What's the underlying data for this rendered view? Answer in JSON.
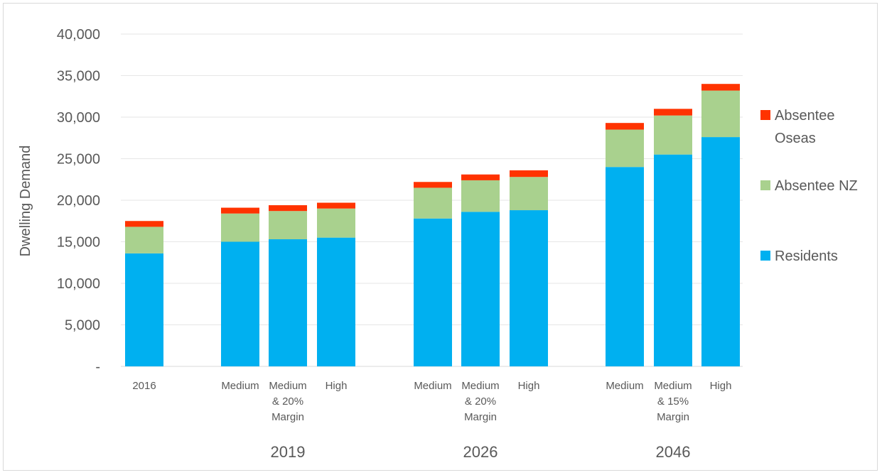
{
  "chart_data": {
    "type": "bar",
    "stacked": true,
    "ylabel": "Dwelling Demand",
    "ylim": [
      0,
      40000
    ],
    "yticks": [
      0,
      5000,
      10000,
      15000,
      20000,
      25000,
      30000,
      35000,
      40000
    ],
    "ytick_labels": [
      "-",
      "5,000",
      "10,000",
      "15,000",
      "20,000",
      "25,000",
      "30,000",
      "35,000",
      "40,000"
    ],
    "grid": true,
    "legend_position": "right",
    "groups": [
      "",
      "2019",
      "2026",
      "2046"
    ],
    "categories": [
      [
        "2016"
      ],
      [
        "Medium"
      ],
      [
        "Medium",
        "& 20%",
        "Margin"
      ],
      [
        "High"
      ],
      [
        "Medium"
      ],
      [
        "Medium",
        "& 20%",
        "Margin"
      ],
      [
        "High"
      ],
      [
        "Medium"
      ],
      [
        "Medium",
        "& 15%",
        "Margin"
      ],
      [
        "High"
      ]
    ],
    "series": [
      {
        "name": "Residents",
        "color": "#00b0f0",
        "values": [
          13600,
          15000,
          15300,
          15500,
          17800,
          18600,
          18800,
          24000,
          25500,
          27600
        ]
      },
      {
        "name": "Absentee NZ",
        "color": "#a9d18e",
        "values": [
          3200,
          3400,
          3400,
          3500,
          3700,
          3800,
          4000,
          4500,
          4700,
          5600
        ]
      },
      {
        "name": "Absentee Oseas",
        "color": "#ff3300",
        "values": [
          700,
          700,
          700,
          700,
          700,
          700,
          800,
          800,
          800,
          800
        ]
      }
    ]
  }
}
